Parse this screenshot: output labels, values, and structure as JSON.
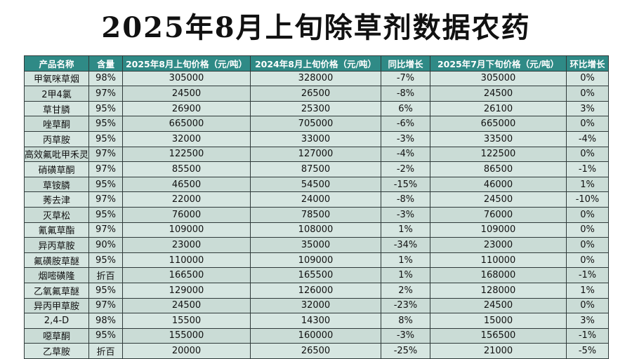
{
  "title": "2025年8月上旬除草剂数据农药",
  "table": {
    "headers": [
      "产品名称",
      "含量",
      "2025年8月上旬价格（元/吨）",
      "2024年8月上旬价格（元/吨）",
      "同比增长",
      "2025年7月下旬价格（元/吨）",
      "环比增长"
    ],
    "rows": [
      [
        "甲氧咪草烟",
        "98%",
        "305000",
        "328000",
        "-7%",
        "305000",
        "0%"
      ],
      [
        "2甲4氯",
        "97%",
        "24500",
        "26500",
        "-8%",
        "24500",
        "0%"
      ],
      [
        "草甘膦",
        "95%",
        "26900",
        "25300",
        "6%",
        "26100",
        "3%"
      ],
      [
        "唑草酮",
        "95%",
        "665000",
        "705000",
        "-6%",
        "665000",
        "0%"
      ],
      [
        "丙草胺",
        "95%",
        "32000",
        "33000",
        "-3%",
        "33500",
        "-4%"
      ],
      [
        "高效氟吡甲禾灵",
        "97%",
        "122500",
        "127000",
        "-4%",
        "122500",
        "0%"
      ],
      [
        "硝磺草酮",
        "97%",
        "85500",
        "87500",
        "-2%",
        "86500",
        "-1%"
      ],
      [
        "草铵膦",
        "95%",
        "46500",
        "54500",
        "-15%",
        "46000",
        "1%"
      ],
      [
        "莠去津",
        "97%",
        "22000",
        "24000",
        "-8%",
        "24500",
        "-10%"
      ],
      [
        "灭草松",
        "95%",
        "76000",
        "78500",
        "-3%",
        "76000",
        "0%"
      ],
      [
        "氰氟草酯",
        "97%",
        "109000",
        "108000",
        "1%",
        "109000",
        "0%"
      ],
      [
        "异丙草胺",
        "90%",
        "23000",
        "35000",
        "-34%",
        "23000",
        "0%"
      ],
      [
        "氟磺胺草醚",
        "95%",
        "110000",
        "109000",
        "1%",
        "110000",
        "0%"
      ],
      [
        "烟嘧磺隆",
        "折百",
        "166500",
        "165500",
        "1%",
        "168000",
        "-1%"
      ],
      [
        "乙氧氟草醚",
        "95%",
        "129000",
        "126000",
        "2%",
        "128000",
        "1%"
      ],
      [
        "异丙甲草胺",
        "97%",
        "24500",
        "32000",
        "-23%",
        "24500",
        "0%"
      ],
      [
        "2,4-D",
        "98%",
        "15500",
        "14300",
        "8%",
        "15000",
        "3%"
      ],
      [
        "噁草酮",
        "95%",
        "155000",
        "160000",
        "-3%",
        "156500",
        "-1%"
      ],
      [
        "乙草胺",
        "折百",
        "20000",
        "26500",
        "-25%",
        "21000",
        "-5%"
      ]
    ]
  }
}
